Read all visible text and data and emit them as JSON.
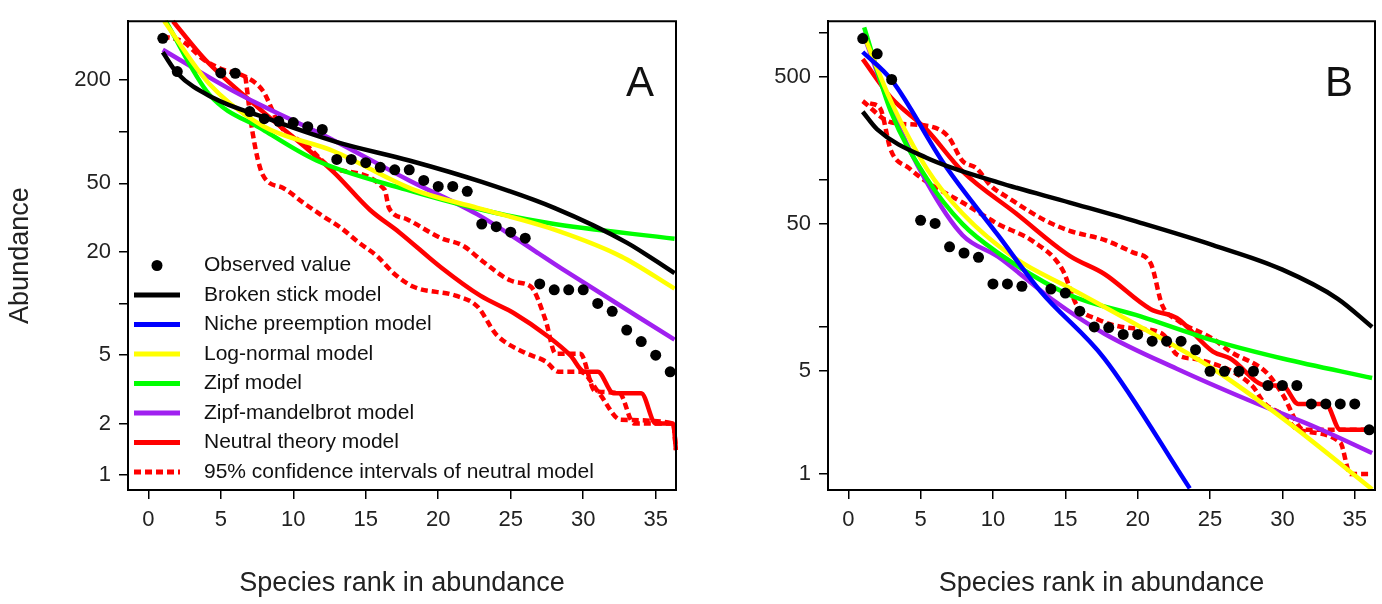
{
  "chart_data": [
    {
      "type": "line",
      "annotations": [
        "A"
      ],
      "xlabel": "Species rank in abundance",
      "ylabel": "Abundance",
      "log": "y",
      "xlim": [
        -1.4,
        36.4
      ],
      "xticks": [
        0,
        5,
        10,
        15,
        20,
        25,
        30,
        35
      ],
      "ylim": [
        0.82,
        440
      ],
      "yticks": [
        1,
        2,
        5,
        {
          "value": 10,
          "label": null
        },
        20,
        50,
        {
          "value": 100,
          "label": null
        },
        200
      ],
      "legend": "bottom left",
      "marker": "none",
      "series": [
        {
          "name": "Observed value",
          "type": "scatter",
          "marker": "circle",
          "color": "#000000",
          "x": [
            1,
            2,
            3,
            4,
            5,
            6,
            7,
            8,
            9,
            10,
            11,
            12,
            13,
            14,
            15,
            16,
            17,
            18,
            19,
            20,
            21,
            22,
            23,
            24,
            25,
            26,
            27,
            28,
            29,
            30,
            31,
            32,
            33,
            34,
            35,
            36
          ],
          "values": [
            350,
            224,
            null,
            null,
            220,
            219,
            131,
            119,
            115,
            113,
            107,
            103,
            69,
            69,
            66,
            62,
            60,
            60,
            52,
            48,
            48,
            45,
            29,
            28,
            26,
            24,
            13,
            12,
            12,
            12,
            10,
            9,
            7,
            6,
            5,
            4
          ]
        },
        {
          "name": "Broken stick model",
          "color": "#000000",
          "x": [
            1,
            2,
            4.5,
            8,
            13,
            18,
            23,
            28,
            33,
            36.3
          ],
          "values": [
            290,
            219,
            157,
            121,
            87,
            68,
            51,
            36,
            22.6,
            15
          ]
        },
        {
          "name": "Niche preemption model",
          "color": "#0000ff"
        },
        {
          "name": "Log-normal model",
          "color": "#ffff00",
          "x": [
            1.1,
            4.2,
            7.9,
            12.8,
            18.3,
            22.7,
            27.6,
            32.6,
            36.3
          ],
          "values": [
            440,
            190,
            108,
            77,
            46,
            36,
            27.6,
            18.8,
            12.2
          ]
        },
        {
          "name": "Zipf model",
          "color": "#00ff00",
          "x": [
            1.2,
            4.2,
            7.9,
            11.6,
            17.8,
            22.7,
            27.6,
            36.3
          ],
          "values": [
            440,
            165,
            103,
            68,
            46,
            35.6,
            29.4,
            23.8
          ]
        },
        {
          "name": "Zipf-mandelbrot model",
          "color": "#a020f0",
          "x": [
            1,
            6,
            12.8,
            18,
            22.7,
            28.9,
            36.3
          ],
          "values": [
            300,
            170,
            89,
            52,
            33,
            15.2,
            6.15
          ]
        },
        {
          "name": "Neutral theory model",
          "color": "#ff0000",
          "x": [
            1.7,
            3.9,
            7.9,
            12.8,
            15.3,
            17.3,
            20.2,
            22.9,
            25.2,
            27.6,
            29.1,
            30.1,
            31,
            32.1,
            34,
            35,
            36.2,
            36.4
          ],
          "values": [
            440,
            264,
            131,
            58,
            35,
            26,
            16.2,
            11.1,
            8.8,
            6.4,
            5,
            4,
            4,
            3,
            3,
            2,
            2,
            1.4
          ]
        },
        {
          "name": "95% confidence intervals of neutral model",
          "color": "#ff0000",
          "line_style": "dashed",
          "x": [
            1,
            2.4,
            3.8,
            5.2,
            6.7,
            7.9,
            9.1,
            10.8,
            12.8,
            16.3,
            16.6,
            17.8,
            20.2,
            21.7,
            23.1,
            25.2,
            26.4,
            27.4,
            28.1,
            29.8,
            30.8,
            32.5,
            33.5,
            36.3
          ],
          "values": [
            359,
            334,
            264,
            229,
            209,
            173,
            108,
            85,
            61,
            46,
            36,
            31,
            24,
            21.7,
            17.5,
            13.4,
            12.5,
            8,
            5.1,
            5.1,
            3.1,
            3,
            2,
            2
          ]
        },
        {
          "color": "#ff0000",
          "line_style": "dashed",
          "x": [
            6.7,
            7.2,
            7.9,
            9.3,
            10.8,
            12.1,
            13.3,
            14.5,
            15.8,
            17,
            18.3,
            21.2,
            22.7,
            24,
            25.9,
            27.4,
            28.3,
            29.8,
            31.1,
            32.6,
            36.2,
            36.4
          ],
          "values": [
            209,
            98,
            56,
            47,
            38,
            32,
            27.5,
            22.7,
            18.8,
            14.8,
            12.5,
            11.1,
            9.6,
            6.6,
            5.2,
            4.6,
            4,
            4,
            3,
            2.1,
            2,
            1.4
          ]
        }
      ]
    },
    {
      "type": "line",
      "annotations": [
        "B"
      ],
      "xlabel": "Species rank in abundance",
      "log": "y",
      "xlim": [
        -1.4,
        36.4
      ],
      "xticks": [
        0,
        5,
        10,
        15,
        20,
        25,
        30,
        35
      ],
      "ylim": [
        0.78,
        1195
      ],
      "yticks": [
        1,
        5,
        {
          "value": 10,
          "label": null
        },
        50,
        {
          "value": 100,
          "label": null
        },
        500,
        {
          "value": 1000,
          "label": null
        }
      ],
      "marker": "none",
      "series": [
        {
          "type": "scatter",
          "marker": "circle",
          "color": "#000000",
          "x": [
            1,
            2,
            3,
            4,
            5,
            6,
            7,
            8,
            9,
            10,
            11,
            12,
            13,
            14,
            15,
            16,
            17,
            18,
            19,
            20,
            21,
            22,
            23,
            24,
            25,
            26,
            27,
            28,
            29,
            30,
            31,
            32,
            33,
            34,
            35,
            36
          ],
          "values": [
            911,
            717,
            480,
            null,
            53,
            50.5,
            35,
            31.8,
            29.7,
            19.6,
            19.6,
            18.9,
            null,
            18.1,
            17,
            12.8,
            10,
            9.9,
            8.9,
            8.9,
            8,
            8,
            8,
            7,
            5,
            5,
            5,
            5,
            4,
            4,
            4,
            3,
            3,
            3,
            3,
            2
          ]
        },
        {
          "color": "#000000",
          "x": [
            1,
            2,
            5.4,
            10.35,
            15.3,
            20.2,
            25.2,
            30,
            33.8,
            36.2
          ],
          "values": [
            290,
            220,
            141,
            96,
            70,
            51,
            36,
            24.5,
            15.6,
            10
          ]
        },
        {
          "color": "#0000ff",
          "x": [
            1,
            3,
            6.65,
            10.35,
            13.3,
            17.7,
            23.6
          ],
          "values": [
            738,
            475,
            127,
            42,
            17.4,
            6.1,
            0.8
          ]
        },
        {
          "color": "#ffff00",
          "x": [
            1.1,
            2.95,
            5.4,
            7.9,
            11.6,
            15.3,
            20.2,
            25.2,
            30,
            36.2
          ],
          "values": [
            950,
            342,
            120,
            59,
            29,
            18.4,
            10,
            5.2,
            2.4,
            0.79
          ]
        },
        {
          "color": "#00ff00",
          "x": [
            1.1,
            2.95,
            5.4,
            7.9,
            10.35,
            15.3,
            20.2,
            25.2,
            30,
            36.2
          ],
          "values": [
            1084,
            290,
            103,
            50,
            31.9,
            16.5,
            11.8,
            8.1,
            6.1,
            4.5
          ]
        },
        {
          "color": "#a020f0",
          "x": [
            1,
            2.95,
            5.4,
            7.9,
            10.35,
            14,
            17.7,
            22.7,
            27.6,
            32.5,
            36.2
          ],
          "values": [
            1000,
            306,
            97,
            42,
            30,
            15.6,
            9,
            5.2,
            3.2,
            2.04,
            1.39
          ]
        },
        {
          "color": "#ff0000",
          "x": [
            1,
            2.95,
            5.4,
            7.9,
            11.6,
            15.3,
            17.7,
            20.9,
            22.7,
            25.2,
            26.4,
            28.9,
            30,
            31.1,
            33,
            34,
            36.2
          ],
          "values": [
            660,
            362,
            220,
            114,
            59,
            30.4,
            22.9,
            13.2,
            11.5,
            6.8,
            6.1,
            4,
            4,
            3,
            3,
            2,
            2
          ]
        },
        {
          "color": "#ff0000",
          "line_style": "dashed",
          "x": [
            1,
            2.95,
            5.4,
            6.9,
            7.9,
            8.85,
            9.85,
            11.1,
            13.6,
            15.3,
            17.7,
            19.7,
            20.9,
            21.7,
            22.7,
            25.2,
            26.4,
            28.9,
            30,
            31.5,
            36.2
          ],
          "values": [
            342,
            246,
            233,
            197,
            134,
            120,
            91,
            75,
            53,
            45,
            39,
            32,
            27,
            14,
            11.2,
            8.3,
            6.8,
            4.9,
            3.5,
            2,
            2
          ]
        },
        {
          "color": "#ff0000",
          "line_style": "dashed",
          "x": [
            1.5,
            2.2,
            2.95,
            4.2,
            5.4,
            7.9,
            10.35,
            12.8,
            14.8,
            15.8,
            17.3,
            19.2,
            21.7,
            22.7,
            24.2,
            27.9,
            28.8,
            30,
            31.1,
            34,
            34.7,
            36.2
          ],
          "values": [
            330,
            306,
            158,
            120,
            97,
            70,
            50,
            38,
            24.5,
            14,
            11.2,
            9.9,
            9,
            6.5,
            6,
            4,
            3,
            2.55,
            2,
            1.64,
            1,
            1.0
          ]
        }
      ]
    }
  ]
}
